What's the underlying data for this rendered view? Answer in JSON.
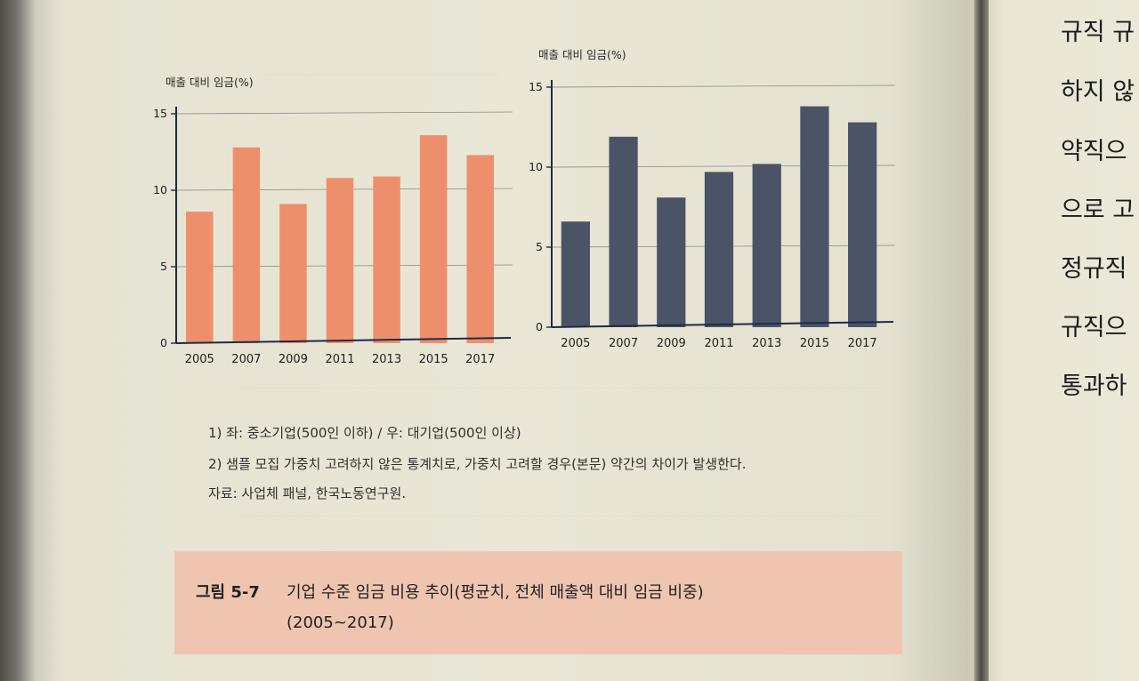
{
  "chart_data": [
    {
      "type": "bar",
      "title": "",
      "ylabel": "매출 대비 임금(%)",
      "xlabel": "",
      "categories": [
        "2005",
        "2007",
        "2009",
        "2011",
        "2013",
        "2015",
        "2017"
      ],
      "series": [
        {
          "values": [
            8.6,
            12.8,
            9.1,
            10.8,
            10.9,
            13.6,
            12.3
          ]
        }
      ],
      "ylim": [
        0,
        15
      ],
      "yticks": [
        "0",
        "5",
        "10",
        "15"
      ],
      "grid": true,
      "color": "#ee8f6b"
    },
    {
      "type": "bar",
      "title": "",
      "ylabel": "매출 대비 임금(%)",
      "xlabel": "",
      "categories": [
        "2005",
        "2007",
        "2009",
        "2011",
        "2013",
        "2015",
        "2017"
      ],
      "series": [
        {
          "values": [
            6.6,
            11.9,
            8.1,
            9.7,
            10.2,
            13.8,
            12.8
          ]
        }
      ],
      "ylim": [
        0,
        15
      ],
      "yticks": [
        "0",
        "5",
        "10",
        "15"
      ],
      "grid": true,
      "color": "#4b5366"
    }
  ],
  "notes": {
    "note1": "1) 좌: 중소기업(500인 이하) / 우: 대기업(500인 이상)",
    "note2": "2) 샘플 모집 가중치 고려하지 않은 통계치로, 가중치 고려할 경우(본문) 약간의 차이가 발생한다.",
    "source": "자료: 사업체 패널, 한국노동연구원."
  },
  "caption": {
    "label": "그림 5-7",
    "title": "기업 수준 임금 비용 추이(평균치, 전체 매출액 대비 임금 비중)",
    "range": "(2005~2017)"
  },
  "right_page": {
    "lines": [
      "규직 규",
      "하지 않",
      "약직으",
      "으로 고",
      "정규직",
      "규직으",
      "통과하"
    ]
  }
}
